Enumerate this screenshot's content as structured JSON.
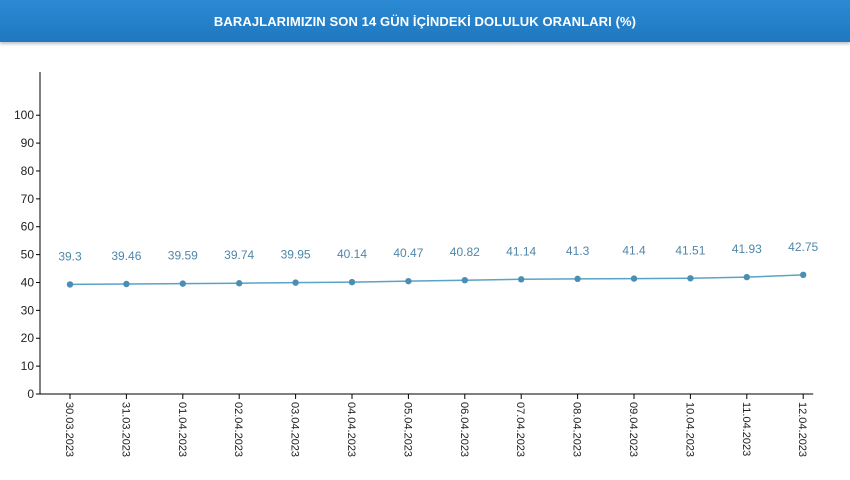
{
  "header": {
    "title": "BARAJLARIMIZIN SON 14 GÜN İÇİNDEKİ DOLULUK ORANLARI (%)"
  },
  "colors": {
    "header_bg": "#1f78c0",
    "line": "#5aa3c6",
    "point": "#4a8fb3",
    "label": "#4f86a8"
  },
  "chart_data": {
    "type": "line",
    "title": "BARAJLARIMIZIN SON 14 GÜN İÇİNDEKİ DOLULUK ORANLARI (%)",
    "xlabel": "",
    "ylabel": "",
    "ylim": [
      0,
      100
    ],
    "yticks": [
      0,
      10,
      20,
      30,
      40,
      50,
      60,
      70,
      80,
      90,
      100
    ],
    "grid": false,
    "categories": [
      "30.03.2023",
      "31.03.2023",
      "01.04.2023",
      "02.04.2023",
      "03.04.2023",
      "04.04.2023",
      "05.04.2023",
      "06.04.2023",
      "07.04.2023",
      "08.04.2023",
      "09.04.2023",
      "10.04.2023",
      "11.04.2023",
      "12.04.2023"
    ],
    "values": [
      39.3,
      39.46,
      39.59,
      39.74,
      39.95,
      40.14,
      40.47,
      40.82,
      41.14,
      41.3,
      41.4,
      41.51,
      41.93,
      42.75
    ],
    "labels": [
      "39.3",
      "39.46",
      "39.59",
      "39.74",
      "39.95",
      "40.14",
      "40.47",
      "40.82",
      "41.14",
      "41.3",
      "41.4",
      "41.51",
      "41.93",
      "42.75"
    ]
  }
}
